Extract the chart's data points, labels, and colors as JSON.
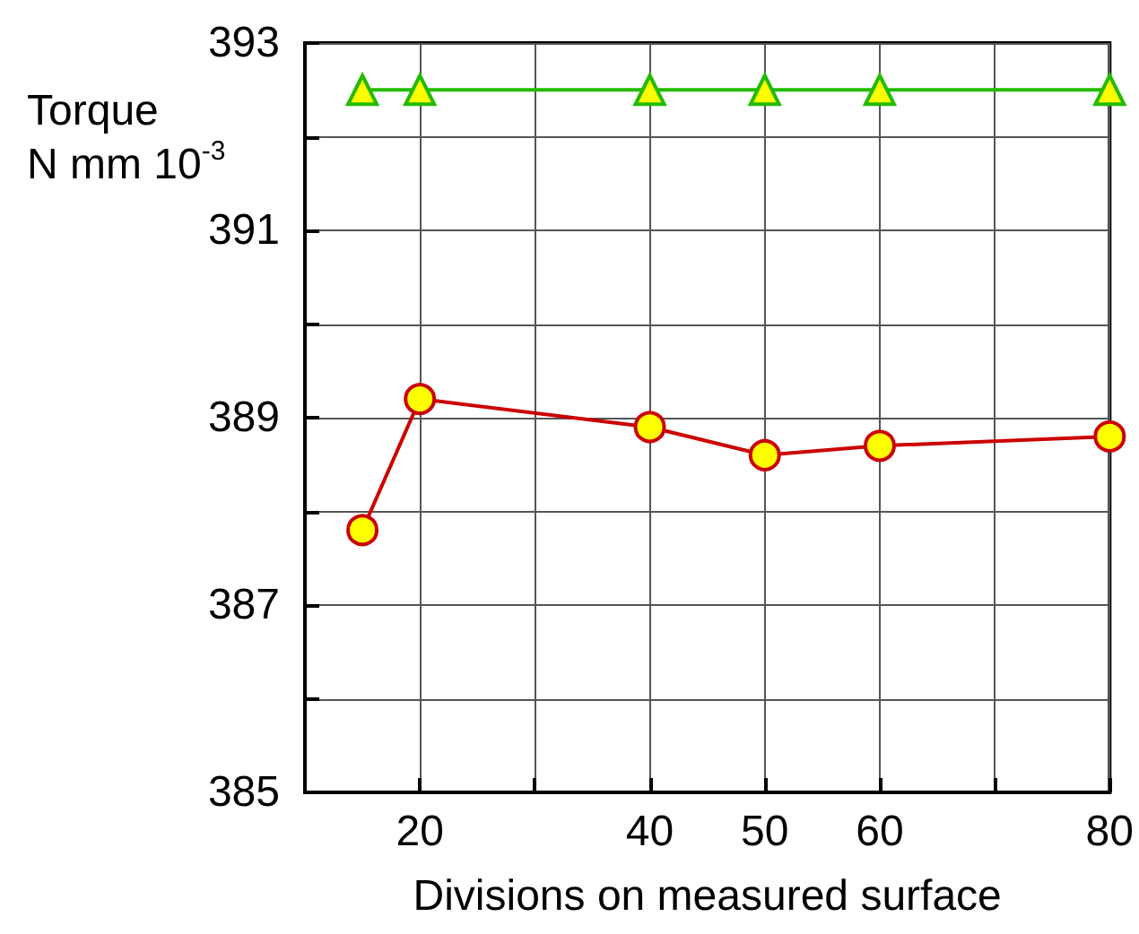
{
  "chart_data": {
    "type": "line",
    "xlabel": "Divisions on measured surface",
    "ylabel": "Torque\nN mm 10$^{-3}$",
    "x": [
      15,
      20,
      40,
      50,
      60,
      80
    ],
    "series": [
      {
        "color": "#22bb00",
        "marker": "triangle",
        "values": [
          392.5,
          392.5,
          392.5,
          392.5,
          392.5,
          392.5
        ]
      },
      {
        "color": "#cc0000",
        "marker": "circle",
        "values": [
          387.8,
          389.2,
          388.9,
          388.6,
          388.7,
          388.8
        ]
      }
    ],
    "xlim": [
      10,
      80
    ],
    "xticks": [
      20,
      {
        "value": 30,
        "label": null
      },
      40,
      50,
      60,
      {
        "value": 70,
        "label": null
      },
      80
    ],
    "ylim": [
      385,
      393
    ],
    "yticks": [
      385,
      {
        "value": 386,
        "label": null
      },
      387,
      {
        "value": 388,
        "label": null
      },
      389,
      {
        "value": 390,
        "label": null
      },
      391,
      {
        "value": 392,
        "label": null
      },
      393
    ],
    "grid": true,
    "line_style": "solid"
  }
}
